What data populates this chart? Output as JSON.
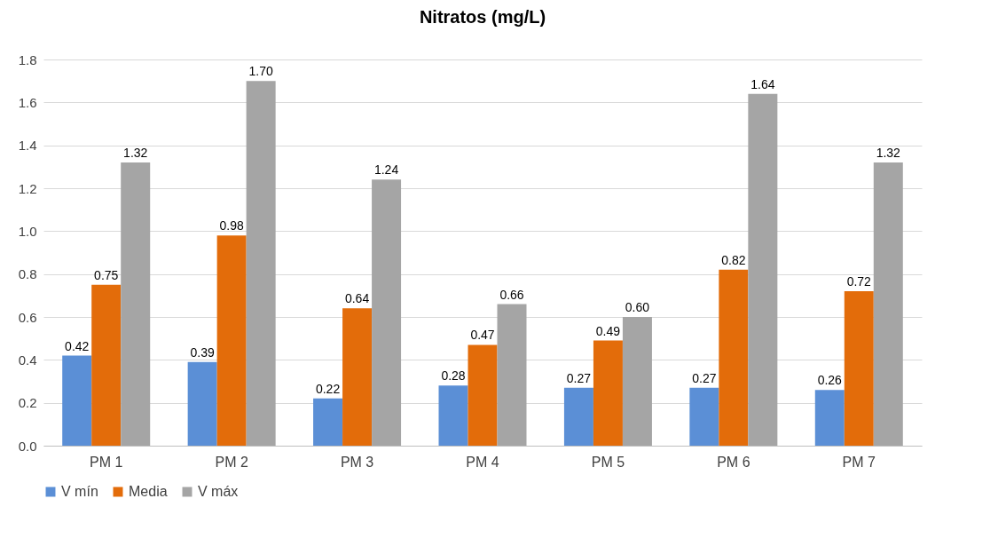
{
  "chart_data": {
    "type": "bar",
    "title": "Nitratos  (mg/L)",
    "categories": [
      "PM 1",
      "PM 2",
      "PM 3",
      "PM 4",
      "PM 5",
      "PM 6",
      "PM 7"
    ],
    "series": [
      {
        "name": "V mín",
        "color": "#5b8fd6",
        "values": [
          0.42,
          0.39,
          0.22,
          0.28,
          0.27,
          0.27,
          0.26
        ],
        "value_labels": [
          "0.42",
          "0.39",
          "0.22",
          "0.28",
          "0.27",
          "0.27",
          "0.26"
        ]
      },
      {
        "name": "Media",
        "color": "#e36c0a",
        "values": [
          0.75,
          0.98,
          0.64,
          0.47,
          0.49,
          0.82,
          0.72
        ],
        "value_labels": [
          "0.75",
          "0.98",
          "0.64",
          "0.47",
          "0.49",
          "0.82",
          "0.72"
        ]
      },
      {
        "name": "V máx",
        "color": "#a5a5a5",
        "values": [
          1.32,
          1.7,
          1.24,
          0.66,
          0.6,
          1.64,
          1.32
        ],
        "value_labels": [
          "1.32",
          "1.70",
          "1.24",
          "0.66",
          "0.60",
          "1.64",
          "1.32"
        ]
      }
    ],
    "ylim": [
      0,
      1.8
    ],
    "yticks": [
      {
        "value": 0,
        "label": "0.0"
      },
      0.2,
      0.4,
      0.6,
      0.8,
      {
        "value": 1,
        "label": "1.0"
      },
      1.2,
      1.4,
      1.6,
      1.8
    ],
    "grid": true,
    "legend": "bottom"
  }
}
